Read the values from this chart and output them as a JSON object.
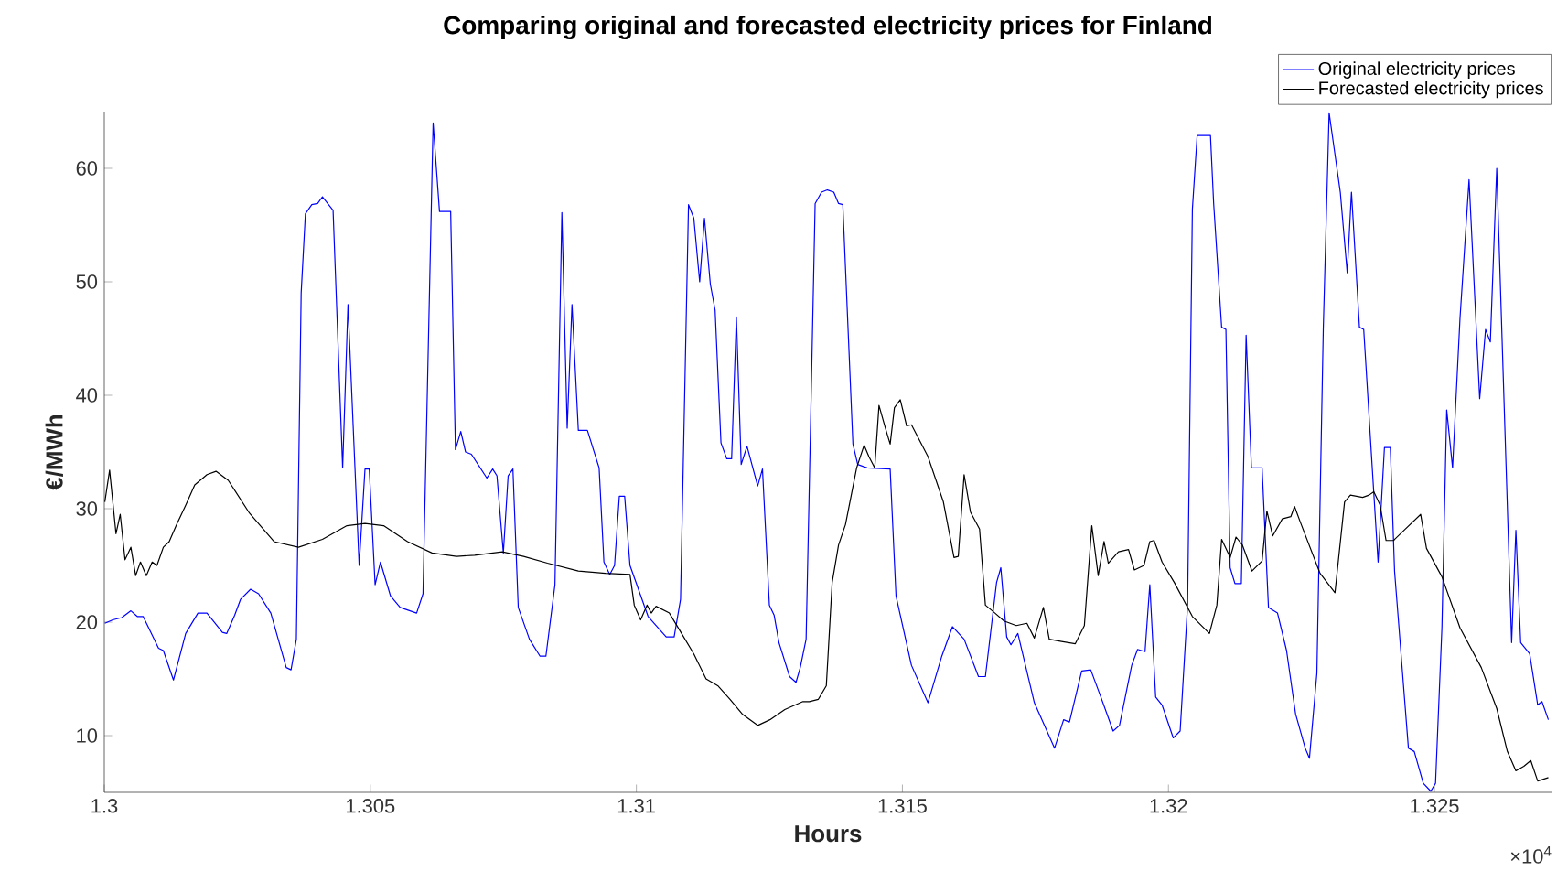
{
  "chart_data": {
    "type": "line",
    "title": "Comparing original and forecasted electricity prices for Finland",
    "xlabel": "Hours",
    "ylabel": "€/MWh",
    "xlim": [
      1.3,
      1.3272
    ],
    "ylim": [
      5,
      65
    ],
    "xticks": [
      1.3,
      1.305,
      1.31,
      1.315,
      1.32,
      1.325
    ],
    "yticks": [
      10,
      20,
      30,
      40,
      50,
      60
    ],
    "legend": "top right",
    "annotations": [
      "×10$^{4}$"
    ],
    "series": [
      {
        "name": "Original electricity prices",
        "color": "#0000ff",
        "x": [
          1.30001,
          1.30016,
          1.30033,
          1.3005,
          1.30062,
          1.30073,
          1.30102,
          1.30111,
          1.3013,
          1.30153,
          1.30176,
          1.30193,
          1.30222,
          1.3023,
          1.30245,
          1.30256,
          1.30275,
          1.3029,
          1.30313,
          1.30342,
          1.30351,
          1.30361,
          1.3037,
          1.30378,
          1.3039,
          1.30401,
          1.3041,
          1.3043,
          1.30448,
          1.30458,
          1.30479,
          1.3049,
          1.30498,
          1.30509,
          1.30519,
          1.30538,
          1.30556,
          1.30587,
          1.30599,
          1.30618,
          1.3063,
          1.30651,
          1.3066,
          1.3067,
          1.30679,
          1.3069,
          1.30719,
          1.3073,
          1.30738,
          1.3075,
          1.30759,
          1.30768,
          1.30778,
          1.30799,
          1.30819,
          1.3083,
          1.30847,
          1.3086,
          1.3087,
          1.30879,
          1.30891,
          1.30908,
          1.3093,
          1.30939,
          1.3095,
          1.30959,
          1.30968,
          1.30978,
          1.30988,
          1.31022,
          1.31056,
          1.31071,
          1.31083,
          1.31098,
          1.31108,
          1.31119,
          1.31128,
          1.31139,
          1.31148,
          1.31159,
          1.3117,
          1.31179,
          1.31188,
          1.31197,
          1.31208,
          1.31228,
          1.31237,
          1.3125,
          1.31259,
          1.31268,
          1.31288,
          1.313,
          1.31308,
          1.31319,
          1.31336,
          1.31348,
          1.31359,
          1.31371,
          1.3138,
          1.31388,
          1.31407,
          1.31416,
          1.31434,
          1.31477,
          1.31488,
          1.31517,
          1.31548,
          1.31574,
          1.31594,
          1.31616,
          1.31643,
          1.31656,
          1.31677,
          1.31685,
          1.31696,
          1.31704,
          1.31717,
          1.31748,
          1.31786,
          1.31803,
          1.31814,
          1.31837,
          1.31854,
          1.31873,
          1.31896,
          1.31908,
          1.31931,
          1.31942,
          1.31956,
          1.31965,
          1.31976,
          1.31988,
          1.32009,
          1.32022,
          1.32036,
          1.32045,
          1.32054,
          1.32079,
          1.32085,
          1.321,
          1.32108,
          1.32116,
          1.32125,
          1.32137,
          1.32146,
          1.32156,
          1.32176,
          1.32188,
          1.32205,
          1.32222,
          1.32239,
          1.32257,
          1.32265,
          1.32279,
          1.32291,
          1.32302,
          1.32323,
          1.32336,
          1.32344,
          1.32359,
          1.32367,
          1.32394,
          1.32406,
          1.32417,
          1.32425,
          1.3244,
          1.32451,
          1.32462,
          1.32479,
          1.32493,
          1.32502,
          1.32514,
          1.32523,
          1.32534,
          1.32548,
          1.32565,
          1.32585,
          1.32596,
          1.32605,
          1.32617,
          1.32645,
          1.32653,
          1.32662,
          1.32679,
          1.32694,
          1.32702,
          1.32714
        ],
        "values": [
          19.9,
          20.2,
          20.4,
          21.0,
          20.5,
          20.5,
          17.7,
          17.5,
          14.9,
          19.0,
          20.8,
          20.8,
          19.1,
          19.0,
          20.6,
          22.0,
          22.9,
          22.5,
          20.8,
          16.0,
          15.8,
          18.5,
          49.0,
          56.0,
          56.8,
          56.9,
          57.5,
          56.3,
          33.6,
          48.0,
          25.0,
          33.5,
          33.5,
          23.3,
          25.3,
          22.3,
          21.3,
          20.8,
          22.5,
          64.0,
          56.2,
          56.2,
          35.2,
          36.8,
          35.0,
          34.8,
          32.7,
          33.5,
          32.9,
          26.1,
          32.9,
          33.5,
          21.3,
          18.5,
          17.0,
          17.0,
          23.3,
          56.1,
          37.1,
          48.0,
          36.9,
          36.9,
          33.6,
          25.3,
          24.2,
          25.0,
          31.1,
          31.1,
          25.0,
          20.5,
          18.7,
          18.7,
          22.0,
          56.8,
          55.6,
          50.0,
          55.6,
          49.8,
          47.5,
          35.8,
          34.4,
          34.4,
          46.9,
          33.9,
          35.5,
          32.0,
          33.5,
          21.5,
          20.6,
          18.2,
          15.2,
          14.7,
          16.0,
          18.5,
          56.9,
          57.9,
          58.1,
          57.9,
          56.9,
          56.8,
          35.7,
          33.9,
          33.6,
          33.5,
          22.3,
          16.2,
          12.9,
          17.0,
          19.6,
          18.5,
          15.2,
          15.2,
          23.5,
          24.8,
          18.7,
          18.0,
          19.0,
          12.9,
          8.9,
          11.4,
          11.2,
          15.7,
          15.8,
          13.4,
          10.4,
          10.9,
          16.2,
          17.6,
          17.4,
          23.3,
          13.4,
          12.7,
          9.8,
          10.4,
          21.5,
          56.4,
          62.9,
          62.9,
          56.9,
          46.0,
          45.8,
          24.8,
          23.4,
          23.4,
          45.3,
          33.6,
          33.6,
          21.3,
          20.8,
          17.5,
          11.9,
          8.9,
          8.0,
          15.5,
          45.8,
          64.9,
          57.9,
          50.8,
          57.9,
          46.0,
          45.8,
          25.3,
          35.4,
          35.4,
          24.5,
          15.5,
          8.9,
          8.6,
          5.8,
          5.1,
          5.8,
          19.5,
          38.7,
          33.6,
          46.8,
          59.0,
          39.7,
          45.8,
          44.7,
          60.0,
          18.2,
          28.1,
          18.2,
          17.2,
          12.7,
          13.0,
          11.4
        ]
      },
      {
        "name": "Forecasted electricity prices",
        "color": "#000000",
        "x": [
          1.30001,
          1.3001,
          1.30022,
          1.3003,
          1.30039,
          1.3005,
          1.30059,
          1.30068,
          1.30079,
          1.3009,
          1.30099,
          1.30111,
          1.30122,
          1.30136,
          1.30153,
          1.3017,
          1.30193,
          1.3021,
          1.30233,
          1.30273,
          1.30319,
          1.30365,
          1.3041,
          1.30456,
          1.3049,
          1.30525,
          1.3057,
          1.30616,
          1.30662,
          1.30696,
          1.30748,
          1.30788,
          1.30833,
          1.30891,
          1.30942,
          1.30988,
          1.30996,
          1.31008,
          1.3102,
          1.31028,
          1.31037,
          1.31062,
          1.31085,
          1.31108,
          1.31131,
          1.31153,
          1.31176,
          1.31199,
          1.31228,
          1.31251,
          1.31279,
          1.31313,
          1.31325,
          1.31342,
          1.31357,
          1.31368,
          1.3138,
          1.31393,
          1.31414,
          1.31428,
          1.31437,
          1.31448,
          1.31456,
          1.31468,
          1.31477,
          1.31485,
          1.31496,
          1.31508,
          1.31517,
          1.31548,
          1.31577,
          1.31597,
          1.31605,
          1.31616,
          1.31628,
          1.31645,
          1.31656,
          1.31674,
          1.31691,
          1.31714,
          1.31734,
          1.31748,
          1.31765,
          1.31776,
          1.31799,
          1.31825,
          1.31842,
          1.31856,
          1.31868,
          1.31879,
          1.31887,
          1.31906,
          1.31925,
          1.31936,
          1.31954,
          1.31965,
          1.31973,
          1.31988,
          1.32011,
          1.32045,
          1.32077,
          1.32091,
          1.321,
          1.32116,
          1.32127,
          1.32139,
          1.32157,
          1.32176,
          1.32185,
          1.32196,
          1.32214,
          1.3223,
          1.32237,
          1.32248,
          1.32285,
          1.32313,
          1.32331,
          1.32342,
          1.32365,
          1.32377,
          1.32386,
          1.32398,
          1.32409,
          1.32423,
          1.32445,
          1.32474,
          1.32485,
          1.32514,
          1.32548,
          1.32588,
          1.32617,
          1.32637,
          1.32653,
          1.32668,
          1.32681,
          1.32694,
          1.32714
        ],
        "values": [
          30.6,
          33.4,
          27.8,
          29.5,
          25.5,
          26.6,
          24.1,
          25.3,
          24.1,
          25.3,
          25.0,
          26.6,
          27.1,
          28.6,
          30.3,
          32.1,
          33.0,
          33.3,
          32.5,
          29.6,
          27.1,
          26.6,
          27.3,
          28.5,
          28.7,
          28.5,
          27.1,
          26.1,
          25.8,
          25.9,
          26.2,
          25.8,
          25.2,
          24.5,
          24.3,
          24.2,
          21.5,
          20.2,
          21.5,
          20.8,
          21.4,
          20.8,
          19.0,
          17.2,
          15.0,
          14.4,
          13.2,
          11.9,
          10.9,
          11.4,
          12.3,
          13.0,
          13.0,
          13.2,
          14.4,
          23.5,
          26.8,
          28.6,
          33.6,
          35.6,
          34.6,
          33.6,
          39.1,
          37.1,
          35.7,
          38.9,
          39.6,
          37.3,
          37.4,
          34.6,
          30.6,
          25.7,
          25.8,
          33.0,
          29.7,
          28.2,
          21.5,
          20.8,
          20.1,
          19.7,
          19.9,
          18.6,
          21.3,
          18.5,
          18.3,
          18.1,
          19.7,
          28.5,
          24.1,
          27.1,
          25.2,
          26.2,
          26.4,
          24.6,
          25.0,
          27.1,
          27.2,
          25.3,
          23.5,
          20.5,
          19.0,
          21.5,
          27.3,
          25.7,
          27.5,
          26.8,
          24.5,
          25.4,
          29.8,
          27.6,
          29.1,
          29.3,
          30.2,
          28.8,
          24.3,
          22.6,
          30.6,
          31.2,
          31.0,
          31.2,
          31.5,
          30.3,
          27.2,
          27.2,
          28.2,
          29.5,
          26.5,
          24.0,
          19.5,
          16.0,
          12.4,
          8.6,
          6.9,
          7.3,
          7.8,
          6.0,
          6.3
        ]
      }
    ]
  }
}
